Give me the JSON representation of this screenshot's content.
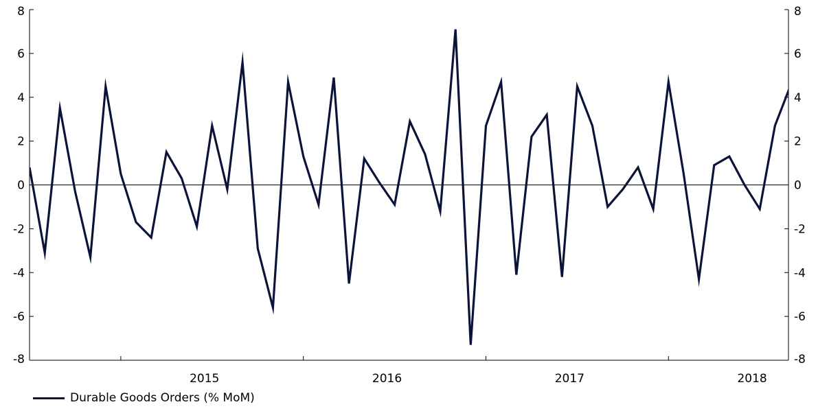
{
  "chart_data": {
    "type": "line",
    "title": "",
    "xlabel": "",
    "ylabel": "",
    "ylim": [
      -8,
      8
    ],
    "yticks": [
      8,
      6,
      4,
      2,
      0,
      -2,
      -4,
      -6,
      -8
    ],
    "ytick_labels": [
      "8",
      "6",
      "4",
      "2",
      "0",
      "-2",
      "-4",
      "-6",
      "-8"
    ],
    "secondary_ytick_labels": [
      "8",
      "6",
      "4",
      "2",
      "0",
      "-2",
      "-4",
      "-6",
      "-8"
    ],
    "xtick_labels": [
      "2015",
      "2016",
      "2017",
      "2018"
    ],
    "x": [
      "2014-07",
      "2014-08",
      "2014-09",
      "2014-10",
      "2014-11",
      "2014-12",
      "2015-01",
      "2015-02",
      "2015-03",
      "2015-04",
      "2015-05",
      "2015-06",
      "2015-07",
      "2015-08",
      "2015-09",
      "2015-10",
      "2015-11",
      "2015-12",
      "2016-01",
      "2016-02",
      "2016-03",
      "2016-04",
      "2016-05",
      "2016-06",
      "2016-07",
      "2016-08",
      "2016-09",
      "2016-10",
      "2016-11",
      "2016-12",
      "2017-01",
      "2017-02",
      "2017-03",
      "2017-04",
      "2017-05",
      "2017-06",
      "2017-07",
      "2017-08",
      "2017-09",
      "2017-10",
      "2017-11",
      "2017-12",
      "2018-01",
      "2018-02",
      "2018-03",
      "2018-04",
      "2018-05",
      "2018-06",
      "2018-07",
      "2018-08",
      "2018-09"
    ],
    "series": [
      {
        "name": "Durable Goods Orders (% MoM)",
        "color": "#0b1338",
        "values": [
          0.8,
          -3.1,
          3.5,
          -0.3,
          -3.3,
          4.5,
          0.5,
          -1.7,
          -2.4,
          1.5,
          0.3,
          -1.9,
          2.7,
          -0.2,
          5.6,
          -2.9,
          -5.6,
          4.7,
          1.3,
          -0.9,
          4.9,
          -4.5,
          1.2,
          0.1,
          -0.9,
          2.9,
          1.4,
          -1.2,
          7.1,
          -7.3,
          2.7,
          4.7,
          -4.1,
          2.2,
          3.2,
          -4.2,
          4.5,
          2.7,
          -1.0,
          -0.2,
          0.8,
          -1.1,
          4.7,
          0.5,
          -4.3,
          0.9,
          1.3,
          0.0,
          -1.1,
          2.7,
          4.5
        ]
      }
    ],
    "grid": false,
    "zero_line": true,
    "legend_position": "bottom-left"
  },
  "legend": {
    "label": "Durable Goods Orders (% MoM)"
  },
  "colors": {
    "series": "#0b1338",
    "axis": "#000000"
  }
}
